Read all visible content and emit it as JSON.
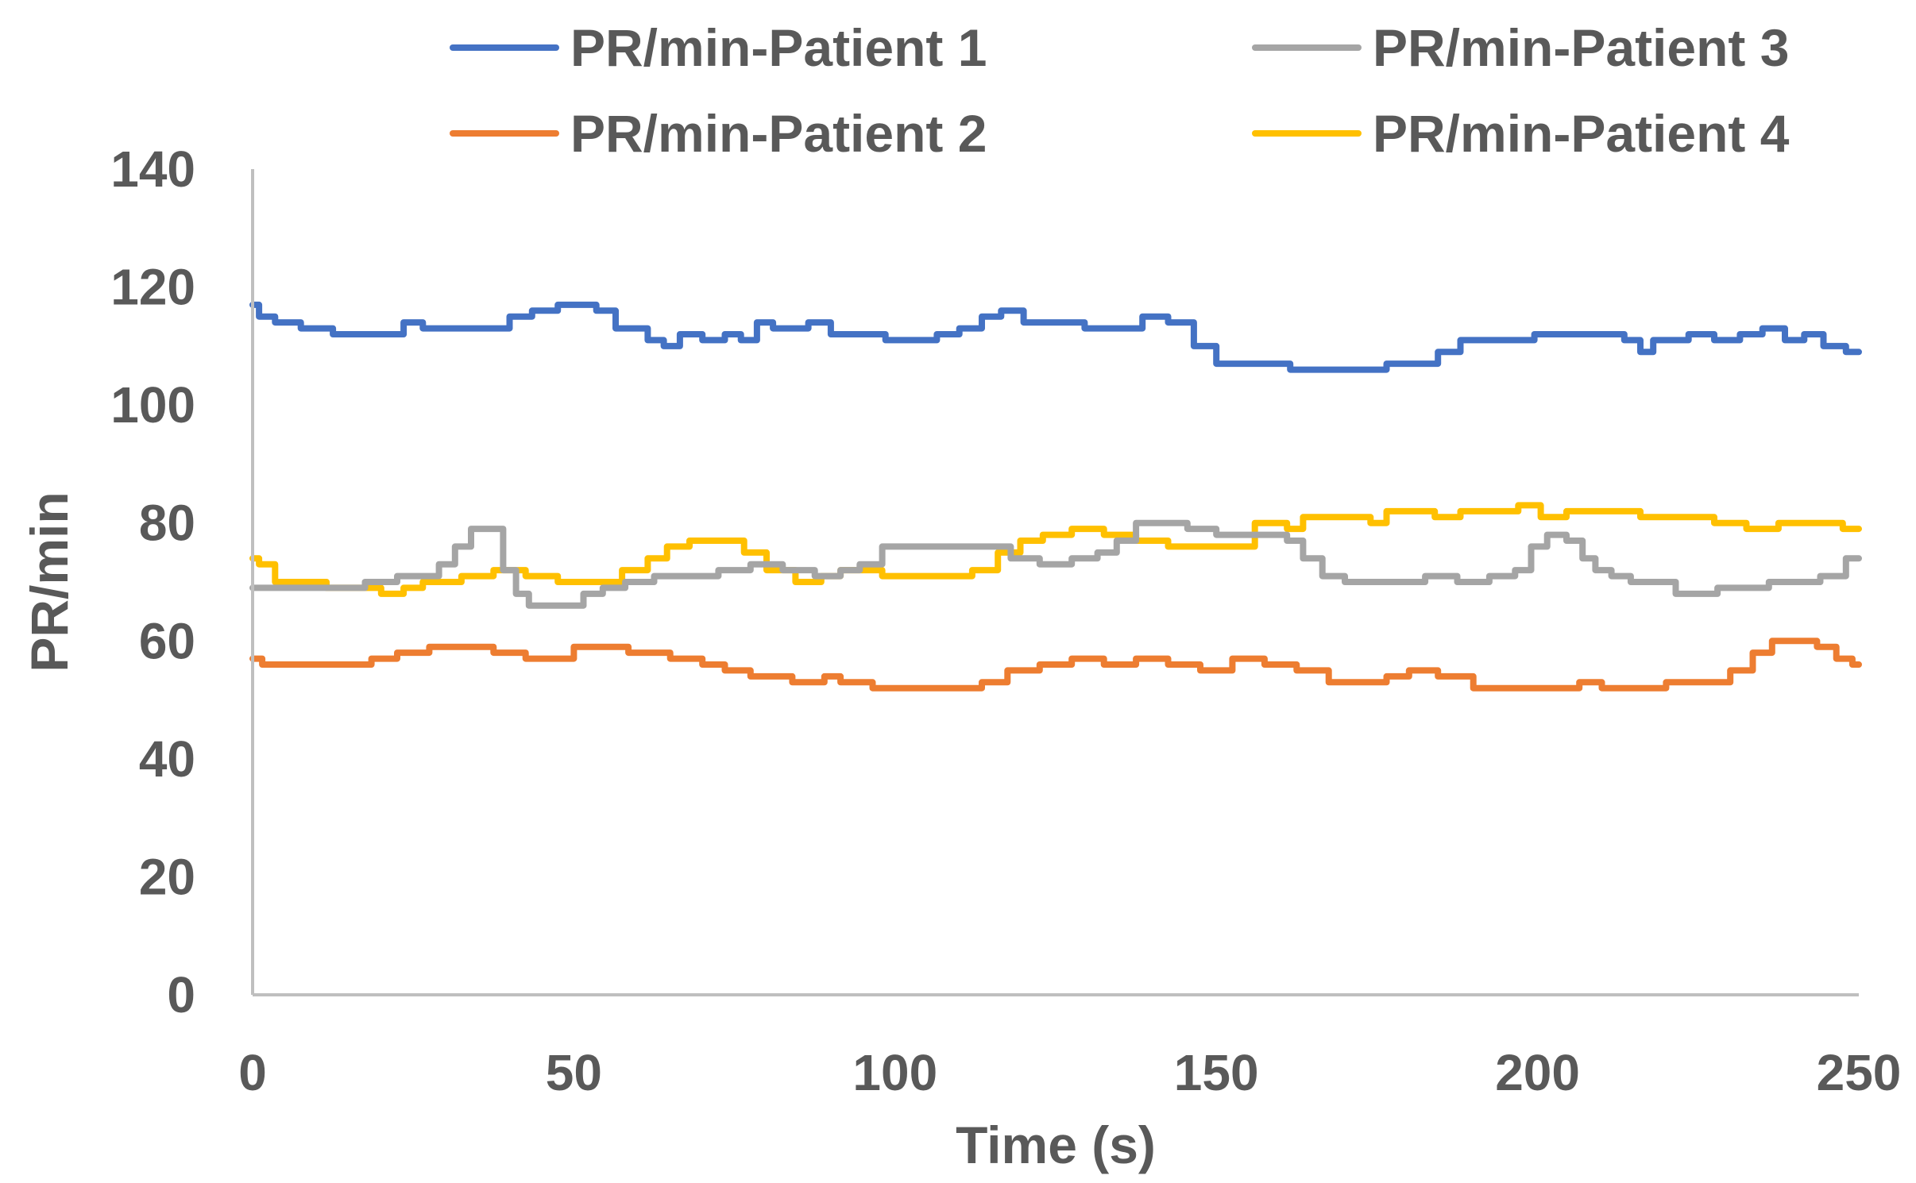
{
  "chart_data": {
    "type": "line",
    "title": "",
    "xlabel": "Time (s)",
    "ylabel": "PR/min",
    "xlim": [
      0,
      250
    ],
    "ylim": [
      0,
      140
    ],
    "xticks": [
      0,
      50,
      100,
      150,
      200,
      250
    ],
    "yticks": [
      0,
      20,
      40,
      60,
      80,
      100,
      120,
      140
    ],
    "grid": false,
    "legend_position": "top",
    "series": [
      {
        "name": "PR/min-Patient 1",
        "color": "#4472C4",
        "x": [
          0,
          2,
          5,
          10,
          15,
          22,
          25,
          28,
          35,
          38,
          42,
          45,
          50,
          52,
          55,
          58,
          60,
          63,
          65,
          68,
          72,
          75,
          77,
          80,
          82,
          85,
          88,
          92,
          97,
          100,
          105,
          108,
          112,
          115,
          118,
          122,
          127,
          132,
          137,
          140,
          145,
          148,
          152,
          155,
          160,
          163,
          170,
          175,
          178,
          183,
          186,
          190,
          197,
          202,
          207,
          212,
          215,
          217,
          219,
          222,
          225,
          230,
          233,
          237,
          240,
          243,
          246,
          250
        ],
        "values": [
          117,
          115,
          114,
          113,
          112,
          112,
          114,
          113,
          113,
          113,
          115,
          116,
          117,
          117,
          116,
          113,
          113,
          111,
          110,
          112,
          111,
          112,
          111,
          114,
          113,
          113,
          114,
          112,
          112,
          111,
          111,
          112,
          113,
          115,
          116,
          114,
          114,
          113,
          113,
          115,
          114,
          110,
          107,
          107,
          107,
          106,
          106,
          106,
          107,
          107,
          109,
          111,
          111,
          112,
          112,
          112,
          111,
          109,
          111,
          111,
          112,
          111,
          112,
          113,
          111,
          112,
          110,
          109
        ]
      },
      {
        "name": "PR/min-Patient 2",
        "color": "#ED7D31",
        "x": [
          0,
          3,
          10,
          17,
          20,
          25,
          30,
          35,
          40,
          45,
          48,
          52,
          55,
          62,
          68,
          72,
          75,
          80,
          88,
          90,
          93,
          100,
          105,
          112,
          115,
          120,
          125,
          130,
          135,
          140,
          145,
          150,
          155,
          160,
          165,
          170,
          175,
          178,
          182,
          187,
          193,
          200,
          205,
          208,
          212,
          218,
          222,
          225,
          228,
          232,
          235,
          238,
          242,
          245,
          248,
          250
        ],
        "values": [
          57,
          56,
          56,
          56,
          57,
          58,
          59,
          59,
          58,
          57,
          57,
          59,
          59,
          58,
          57,
          56,
          55,
          54,
          53,
          54,
          53,
          52,
          52,
          52,
          53,
          55,
          56,
          57,
          56,
          57,
          56,
          55,
          57,
          56,
          55,
          53,
          53,
          54,
          55,
          54,
          52,
          52,
          52,
          53,
          52,
          52,
          53,
          53,
          53,
          55,
          58,
          60,
          60,
          59,
          57,
          56
        ]
      },
      {
        "name": "PR/min-Patient 3",
        "color": "#A5A5A5",
        "x": [
          0,
          5,
          10,
          15,
          20,
          25,
          28,
          30,
          33,
          35,
          38,
          40,
          42,
          44,
          46,
          50,
          53,
          56,
          60,
          65,
          70,
          75,
          80,
          85,
          90,
          93,
          96,
          100,
          104,
          108,
          112,
          116,
          120,
          125,
          130,
          133,
          136,
          139,
          143,
          148,
          152,
          155,
          160,
          162,
          165,
          168,
          172,
          176,
          180,
          185,
          190,
          195,
          198,
          200,
          203,
          206,
          208,
          210,
          213,
          216,
          220,
          223,
          226,
          230,
          234,
          238,
          242,
          246,
          250
        ],
        "values": [
          69,
          69,
          69,
          69,
          70,
          71,
          71,
          73,
          76,
          79,
          79,
          72,
          68,
          66,
          66,
          66,
          68,
          69,
          70,
          71,
          71,
          72,
          73,
          72,
          71,
          72,
          73,
          76,
          76,
          76,
          76,
          76,
          74,
          73,
          74,
          75,
          77,
          80,
          80,
          79,
          78,
          78,
          78,
          77,
          74,
          71,
          70,
          70,
          70,
          71,
          70,
          71,
          72,
          76,
          78,
          77,
          74,
          72,
          71,
          70,
          70,
          68,
          68,
          69,
          69,
          70,
          70,
          71,
          74
        ]
      },
      {
        "name": "PR/min-Patient 4",
        "color": "#FFC000",
        "x": [
          0,
          2,
          5,
          10,
          13,
          18,
          22,
          25,
          28,
          30,
          35,
          40,
          45,
          50,
          55,
          60,
          63,
          66,
          70,
          75,
          78,
          82,
          87,
          90,
          93,
          96,
          100,
          105,
          110,
          114,
          118,
          121,
          125,
          130,
          135,
          140,
          145,
          150,
          155,
          157,
          160,
          162,
          165,
          170,
          173,
          175,
          178,
          182,
          186,
          190,
          195,
          199,
          202,
          207,
          212,
          220,
          225,
          230,
          235,
          240,
          245,
          250
        ],
        "values": [
          74,
          73,
          70,
          70,
          69,
          69,
          68,
          69,
          70,
          70,
          71,
          72,
          71,
          70,
          70,
          72,
          74,
          76,
          77,
          77,
          75,
          72,
          70,
          71,
          72,
          72,
          71,
          71,
          71,
          72,
          75,
          77,
          78,
          79,
          78,
          77,
          76,
          76,
          76,
          80,
          80,
          79,
          81,
          81,
          81,
          80,
          82,
          82,
          81,
          82,
          82,
          83,
          81,
          82,
          82,
          81,
          81,
          80,
          79,
          80,
          80,
          79
        ]
      }
    ]
  }
}
